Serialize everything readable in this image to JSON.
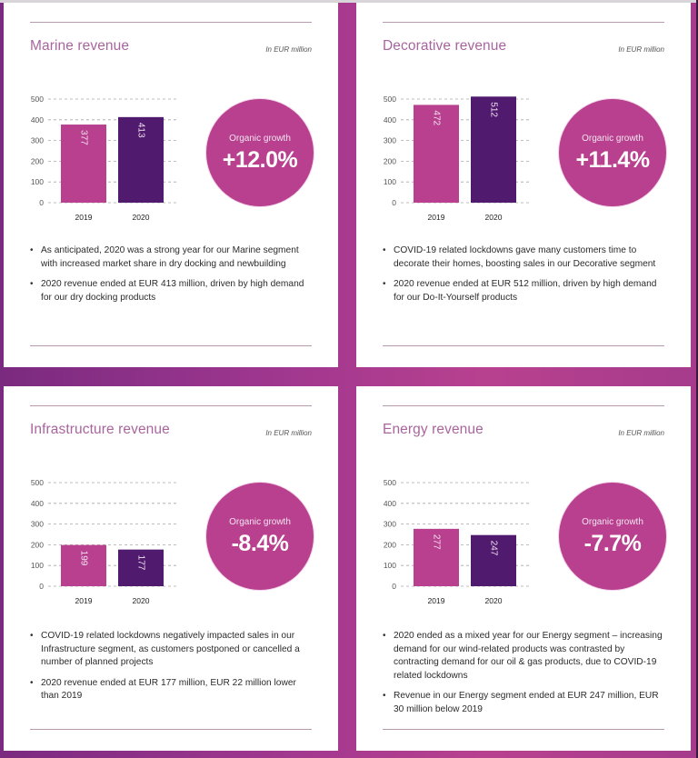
{
  "colors": {
    "bar_2019": "#b8408f",
    "bar_2020": "#501a6e",
    "circle": "#b8408f",
    "title": "#a8659d"
  },
  "panels": [
    {
      "title": "Marine revenue",
      "unit": "In EUR million",
      "growth_label": "Organic growth",
      "growth_value": "+12.0%",
      "bullets": [
        "As anticipated, 2020 was a strong year for our Marine segment with increased market share in dry docking and newbuilding",
        "2020 revenue ended at EUR 413 million, driven by high demand for our dry docking products"
      ]
    },
    {
      "title": "Decorative revenue",
      "unit": "In EUR million",
      "growth_label": "Organic growth",
      "growth_value": "+11.4%",
      "bullets": [
        "COVID-19 related lockdowns gave many customers time to decorate their homes, boosting sales in our Decorative segment",
        "2020 revenue ended at EUR 512 million, driven by high demand for our Do-It-Yourself products"
      ]
    },
    {
      "title": "Infrastructure revenue",
      "unit": "In EUR million",
      "growth_label": "Organic growth",
      "growth_value": "-8.4%",
      "bullets": [
        "COVID-19 related lockdowns negatively impacted sales in our Infrastructure segment, as customers postponed or cancelled a number of planned projects",
        "2020 revenue ended at EUR 177 million, EUR 22 million lower than 2019"
      ]
    },
    {
      "title": "Energy revenue",
      "unit": "In EUR million",
      "growth_label": "Organic growth",
      "growth_value": "-7.7%",
      "bullets": [
        "2020 ended as a mixed year for our Energy segment – increasing demand for our wind-related products was contrasted by contracting demand for our oil & gas products, due to COVID-19 related lockdowns",
        "Revenue in our Energy segment ended at EUR 247 million, EUR 30 million below 2019"
      ]
    }
  ],
  "chart_data": [
    {
      "type": "bar",
      "title": "Marine revenue",
      "ylabel": "In EUR million",
      "categories": [
        "2019",
        "2020"
      ],
      "values": [
        377,
        413
      ],
      "yticks": [
        "0",
        "100",
        "200",
        "300",
        "400",
        "500"
      ],
      "ylim": [
        0,
        500
      ],
      "grid": true
    },
    {
      "type": "bar",
      "title": "Decorative revenue",
      "ylabel": "In EUR million",
      "categories": [
        "2019",
        "2020"
      ],
      "values": [
        472,
        512
      ],
      "yticks": [
        "0",
        "100",
        "200",
        "300",
        "400",
        "500"
      ],
      "ylim": [
        0,
        500
      ],
      "grid": true
    },
    {
      "type": "bar",
      "title": "Infrastructure revenue",
      "ylabel": "In EUR million",
      "categories": [
        "2019",
        "2020"
      ],
      "values": [
        199,
        177
      ],
      "yticks": [
        "0",
        "100",
        "200",
        "300",
        "400",
        "500"
      ],
      "ylim": [
        0,
        500
      ],
      "grid": true
    },
    {
      "type": "bar",
      "title": "Energy revenue",
      "ylabel": "In EUR million",
      "categories": [
        "2019",
        "2020"
      ],
      "values": [
        277,
        247
      ],
      "yticks": [
        "0",
        "100",
        "200",
        "300",
        "400",
        "500"
      ],
      "ylim": [
        0,
        500
      ],
      "grid": true
    }
  ]
}
